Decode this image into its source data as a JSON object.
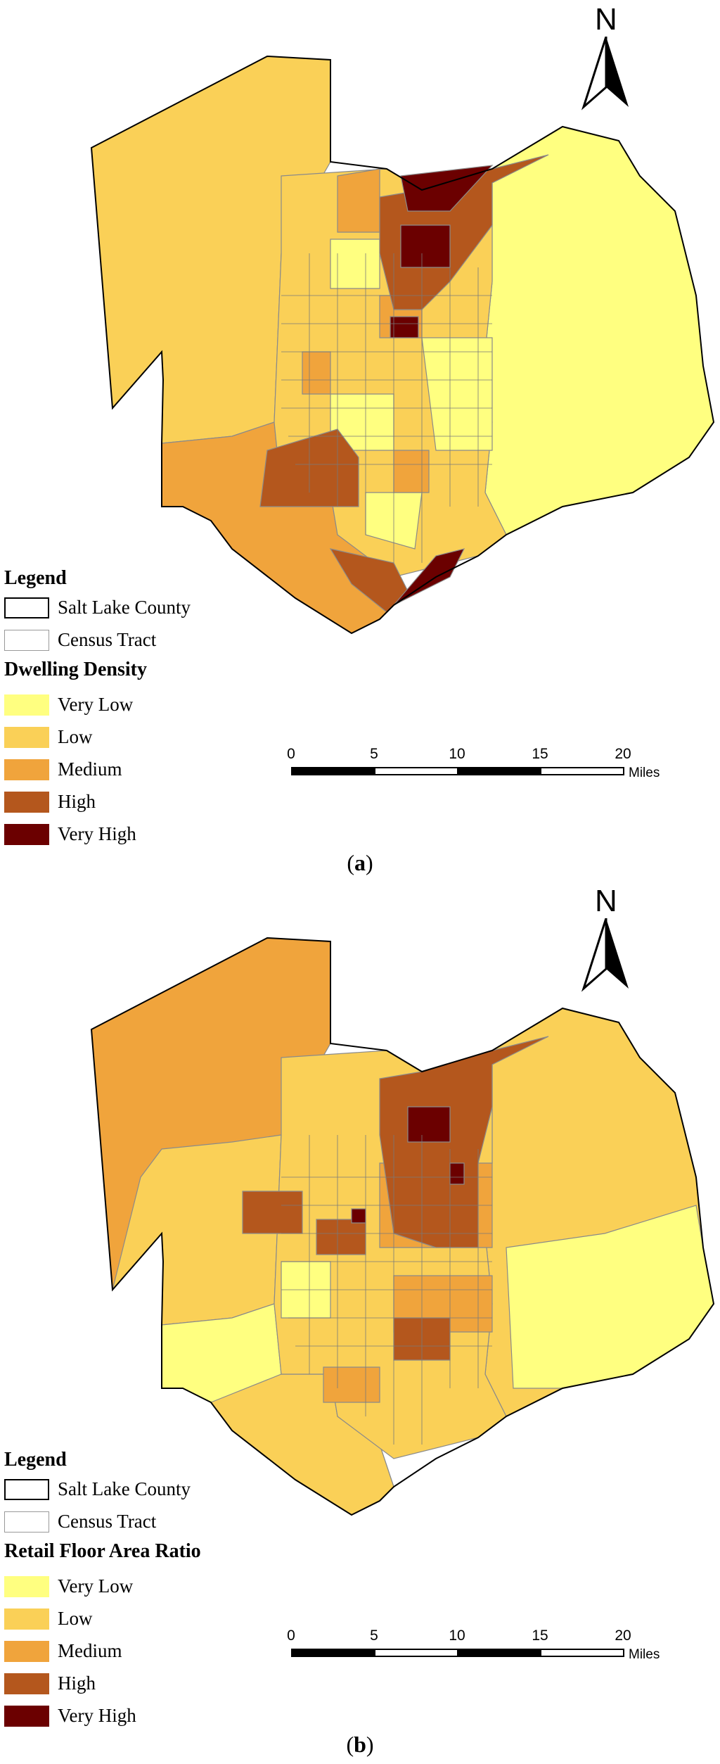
{
  "panels": [
    {
      "id": "a",
      "caption_open": "(",
      "caption_letter": "a",
      "caption_close": ")",
      "north": "N",
      "legend": {
        "title": "Legend",
        "boundary_items": [
          {
            "label": "Salt Lake County",
            "style": "county"
          },
          {
            "label": "Census Tract",
            "style": "tract"
          }
        ],
        "variable_title": "Dwelling Density",
        "classes": [
          {
            "label": "Very Low",
            "color": "#ffff80"
          },
          {
            "label": "Low",
            "color": "#fad057"
          },
          {
            "label": "Medium",
            "color": "#f0a43c"
          },
          {
            "label": "High",
            "color": "#b4571d"
          },
          {
            "label": "Very High",
            "color": "#6b0000"
          }
        ]
      },
      "scale": {
        "ticks": [
          "0",
          "5",
          "10",
          "15",
          "20"
        ],
        "unit": "Miles"
      }
    },
    {
      "id": "b",
      "caption_open": "(",
      "caption_letter": "b",
      "caption_close": ")",
      "north": "N",
      "legend": {
        "title": "Legend",
        "boundary_items": [
          {
            "label": "Salt Lake County",
            "style": "county"
          },
          {
            "label": "Census Tract",
            "style": "tract"
          }
        ],
        "variable_title": "Retail Floor Area Ratio",
        "classes": [
          {
            "label": "Very Low",
            "color": "#ffff80"
          },
          {
            "label": "Low",
            "color": "#fad057"
          },
          {
            "label": "Medium",
            "color": "#f0a43c"
          },
          {
            "label": "High",
            "color": "#b4571d"
          },
          {
            "label": "Very High",
            "color": "#6b0000"
          }
        ]
      },
      "scale": {
        "ticks": [
          "0",
          "5",
          "10",
          "15",
          "20"
        ],
        "unit": "Miles"
      }
    }
  ]
}
